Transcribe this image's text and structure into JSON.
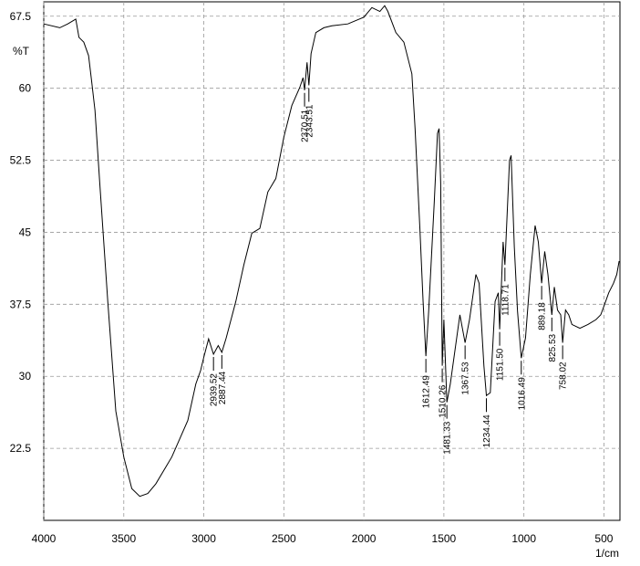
{
  "chart_data": {
    "type": "line",
    "y_label": "%T",
    "x_label": "1/cm",
    "xlim": [
      4000,
      400
    ],
    "ylim": [
      15,
      69
    ],
    "xticks": [
      4000,
      3500,
      3000,
      2500,
      2000,
      1500,
      1000,
      500
    ],
    "yticks": [
      22.5,
      30,
      37.5,
      45,
      52.5,
      60,
      67.5
    ],
    "grid": true,
    "series": [
      {
        "color": "#000000",
        "x": [
          4000,
          3900,
          3850,
          3800,
          3780,
          3750,
          3720,
          3700,
          3680,
          3650,
          3600,
          3550,
          3500,
          3450,
          3400,
          3350,
          3300,
          3200,
          3100,
          3050,
          3020,
          3000,
          2970,
          2939.52,
          2910,
          2887.44,
          2860,
          2800,
          2750,
          2700,
          2650,
          2600,
          2550,
          2500,
          2450,
          2400,
          2380,
          2370.51,
          2355,
          2343.51,
          2330,
          2300,
          2250,
          2200,
          2100,
          2000,
          1950,
          1900,
          1870,
          1850,
          1800,
          1750,
          1700,
          1680,
          1650,
          1630,
          1612.49,
          1595,
          1560,
          1540,
          1530,
          1520,
          1510.26,
          1500,
          1481.33,
          1460,
          1420,
          1400,
          1367.53,
          1340,
          1300,
          1280,
          1250,
          1234.44,
          1210,
          1180,
          1160,
          1151.5,
          1130,
          1118.71,
          1090,
          1080,
          1060,
          1040,
          1016.49,
          990,
          960,
          930,
          910,
          889.18,
          870,
          850,
          825.53,
          810,
          790,
          770,
          758.02,
          740,
          720,
          700,
          650,
          600,
          550,
          520,
          500,
          470,
          440,
          420,
          405
        ],
        "values": [
          66.7,
          66.3,
          66.7,
          67.2,
          65.3,
          64.8,
          63.4,
          60.6,
          57.7,
          50.1,
          37.8,
          26.4,
          21.6,
          18.3,
          17.5,
          17.8,
          18.8,
          21.6,
          25.4,
          29.2,
          30.6,
          32.0,
          33.9,
          32.3,
          33.2,
          32.5,
          34.0,
          37.8,
          41.6,
          44.9,
          45.4,
          49.2,
          50.6,
          54.9,
          58.2,
          60.1,
          61.1,
          59.8,
          62.7,
          60.3,
          63.6,
          65.8,
          66.3,
          66.5,
          66.7,
          67.4,
          68.4,
          68.0,
          68.6,
          68.0,
          65.8,
          64.8,
          61.5,
          55.8,
          45.4,
          37.8,
          32.1,
          36.8,
          48.2,
          55.3,
          55.8,
          50.1,
          31.1,
          35.9,
          27.3,
          29.2,
          34.0,
          36.4,
          33.5,
          35.9,
          40.6,
          39.7,
          31.1,
          28.0,
          28.3,
          37.8,
          38.7,
          34.9,
          44.0,
          41.6,
          52.5,
          53.0,
          43.5,
          36.8,
          31.9,
          34.0,
          40.6,
          45.7,
          44.0,
          39.7,
          43.0,
          40.6,
          36.4,
          39.3,
          36.9,
          36.4,
          33.5,
          36.9,
          36.4,
          35.4,
          35.0,
          35.4,
          35.9,
          36.4,
          37.3,
          38.7,
          39.7,
          40.6,
          42.0
        ]
      }
    ],
    "peaks": [
      {
        "x": 2939.52,
        "label": "2939.52"
      },
      {
        "x": 2887.44,
        "label": "2887.44"
      },
      {
        "x": 2370.51,
        "label": "2370.51"
      },
      {
        "x": 2343.51,
        "label": "2343.51"
      },
      {
        "x": 1612.49,
        "label": "1612.49"
      },
      {
        "x": 1510.26,
        "label": "1510.26"
      },
      {
        "x": 1481.33,
        "label": "1481.33"
      },
      {
        "x": 1367.53,
        "label": "1367.53"
      },
      {
        "x": 1234.44,
        "label": "1234.44"
      },
      {
        "x": 1151.5,
        "label": "1151.50"
      },
      {
        "x": 1118.71,
        "label": "1118.71"
      },
      {
        "x": 1016.49,
        "label": "1016.49"
      },
      {
        "x": 889.18,
        "label": "889.18"
      },
      {
        "x": 825.53,
        "label": "825.53"
      },
      {
        "x": 758.02,
        "label": "758.02"
      }
    ]
  }
}
